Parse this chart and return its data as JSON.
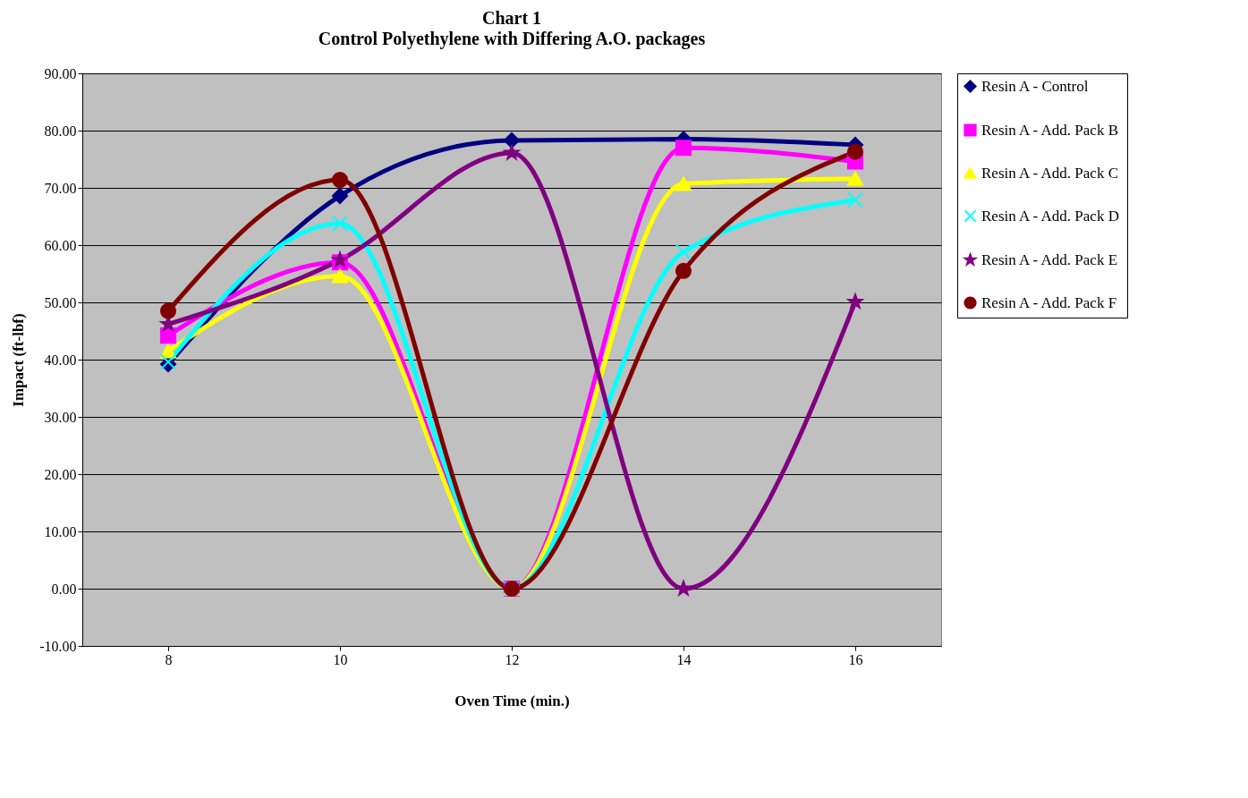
{
  "chart_data": {
    "type": "line",
    "title": "Chart 1",
    "subtitle": "Control Polyethylene with Differing A.O. packages",
    "xlabel": "Oven Time (min.)",
    "ylabel": "Impact (ft-lbf)",
    "categories": [
      "8",
      "10",
      "12",
      "14",
      "16"
    ],
    "series": [
      {
        "name": "Resin A - Control",
        "color": "#000080",
        "marker": "diamond",
        "values": [
          39.2,
          68.6,
          78.3,
          78.5,
          77.5
        ]
      },
      {
        "name": "Resin A - Add. Pack B",
        "color": "#ff00ff",
        "marker": "square",
        "values": [
          44.2,
          57.0,
          0,
          77.0,
          74.6
        ]
      },
      {
        "name": "Resin A - Add. Pack C",
        "color": "#ffff00",
        "marker": "triangle",
        "values": [
          41.5,
          54.6,
          0,
          70.7,
          71.6
        ]
      },
      {
        "name": "Resin A - Add. Pack D",
        "color": "#00ffff",
        "marker": "cross",
        "values": [
          39.6,
          63.8,
          0,
          58.8,
          67.9
        ]
      },
      {
        "name": "Resin A - Add. Pack E",
        "color": "#800080",
        "marker": "star",
        "values": [
          46.2,
          57.4,
          76.1,
          0,
          50.1
        ]
      },
      {
        "name": "Resin A - Add. Pack F",
        "color": "#800000",
        "marker": "circle",
        "values": [
          48.5,
          71.4,
          0,
          55.5,
          76.3
        ]
      }
    ],
    "ylim": [
      -10,
      90
    ],
    "yticks": [
      {
        "value": -10,
        "label": "-10.00"
      },
      {
        "value": 0,
        "label": "0.00"
      },
      {
        "value": 10,
        "label": "10.00"
      },
      {
        "value": 20,
        "label": "20.00"
      },
      {
        "value": 30,
        "label": "30.00"
      },
      {
        "value": 40,
        "label": "40.00"
      },
      {
        "value": 50,
        "label": "50.00"
      },
      {
        "value": 60,
        "label": "60.00"
      },
      {
        "value": 70,
        "label": "70.00"
      },
      {
        "value": 80,
        "label": "80.00"
      },
      {
        "value": 90,
        "label": "90.00"
      }
    ],
    "grid": "y",
    "legend": "right",
    "line_style": "solid"
  }
}
